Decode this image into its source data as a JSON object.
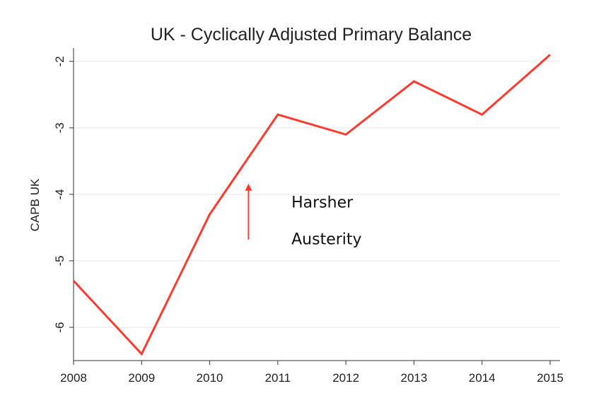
{
  "chart_data": {
    "type": "line",
    "title": "UK - Cyclically Adjusted Primary Balance",
    "xlabel": "",
    "ylabel": "CAPB UK",
    "x": [
      2008,
      2009,
      2010,
      2011,
      2012,
      2013,
      2014,
      2015
    ],
    "x_tick_labels": [
      "2008",
      "2009",
      "2010",
      "2011",
      "2012",
      "2013",
      "2014",
      "2015"
    ],
    "y_ticks": [
      -2,
      -3,
      -4,
      -5,
      -6
    ],
    "y_tick_labels": [
      "-2",
      "-3",
      "-4",
      "-5",
      "-6"
    ],
    "xlim": [
      2008,
      2015
    ],
    "ylim": [
      -6.5,
      -1.8
    ],
    "grid": true,
    "series": [
      {
        "values": [
          -5.3,
          -6.4,
          -4.3,
          -2.8,
          -3.1,
          -2.3,
          -2.8,
          -1.9
        ],
        "color": "#ff3b30"
      }
    ],
    "annotations": [
      {
        "text": "Harsher",
        "x": 2011.2,
        "y": -4.2
      },
      {
        "text": "Austerity",
        "x": 2011.2,
        "y": -4.75
      }
    ],
    "arrow": {
      "x": 2010.57,
      "y_from": -4.68,
      "y_to": -3.85,
      "color": "#ff3b30"
    }
  }
}
